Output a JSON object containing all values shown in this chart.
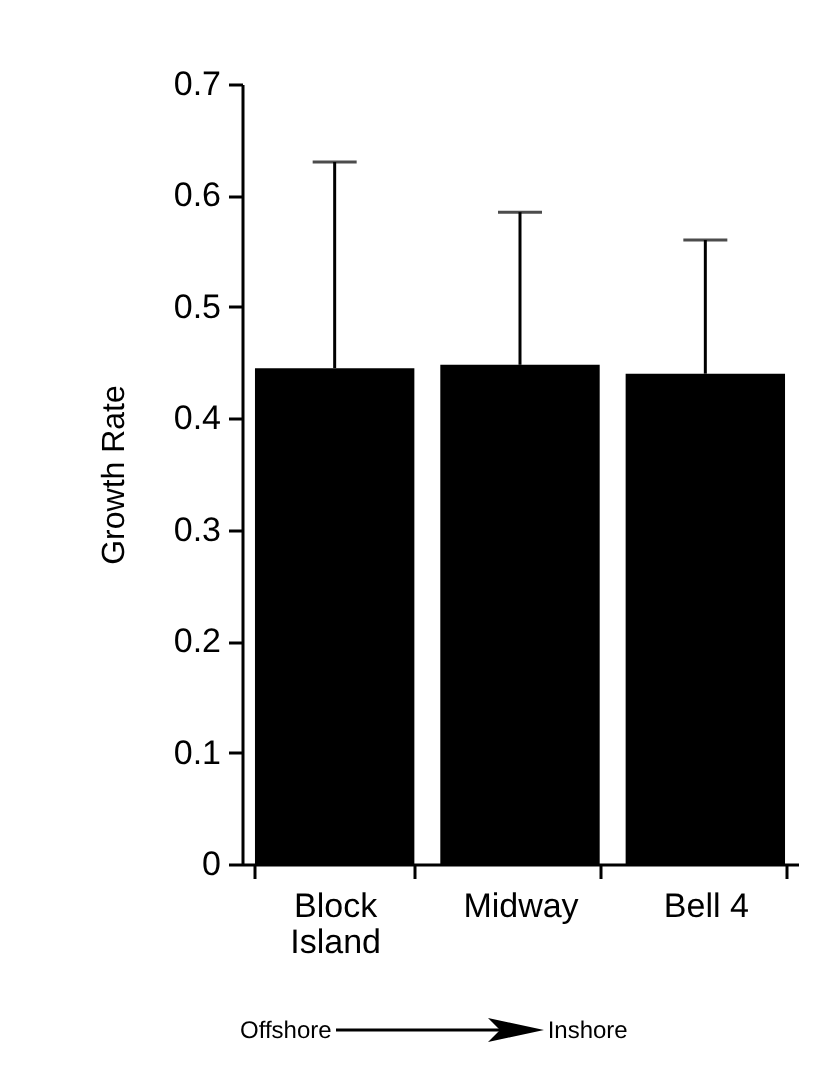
{
  "chart_data": {
    "type": "bar",
    "ylabel": "Growth Rate",
    "categories": [
      "Block Island",
      "Midway",
      "Bell 4"
    ],
    "values": [
      0.445,
      0.448,
      0.44
    ],
    "errors": [
      [
        0.445,
        0.63
      ],
      [
        0.448,
        0.585
      ],
      [
        0.44,
        0.56
      ]
    ],
    "color": "#000000",
    "ylim": [
      0,
      0.7
    ],
    "yticks": [
      0,
      0.1,
      0.2,
      0.3,
      0.4,
      0.5,
      0.6,
      0.7
    ],
    "grid": false,
    "annotations": [
      "Offshore",
      "Inshore"
    ]
  }
}
